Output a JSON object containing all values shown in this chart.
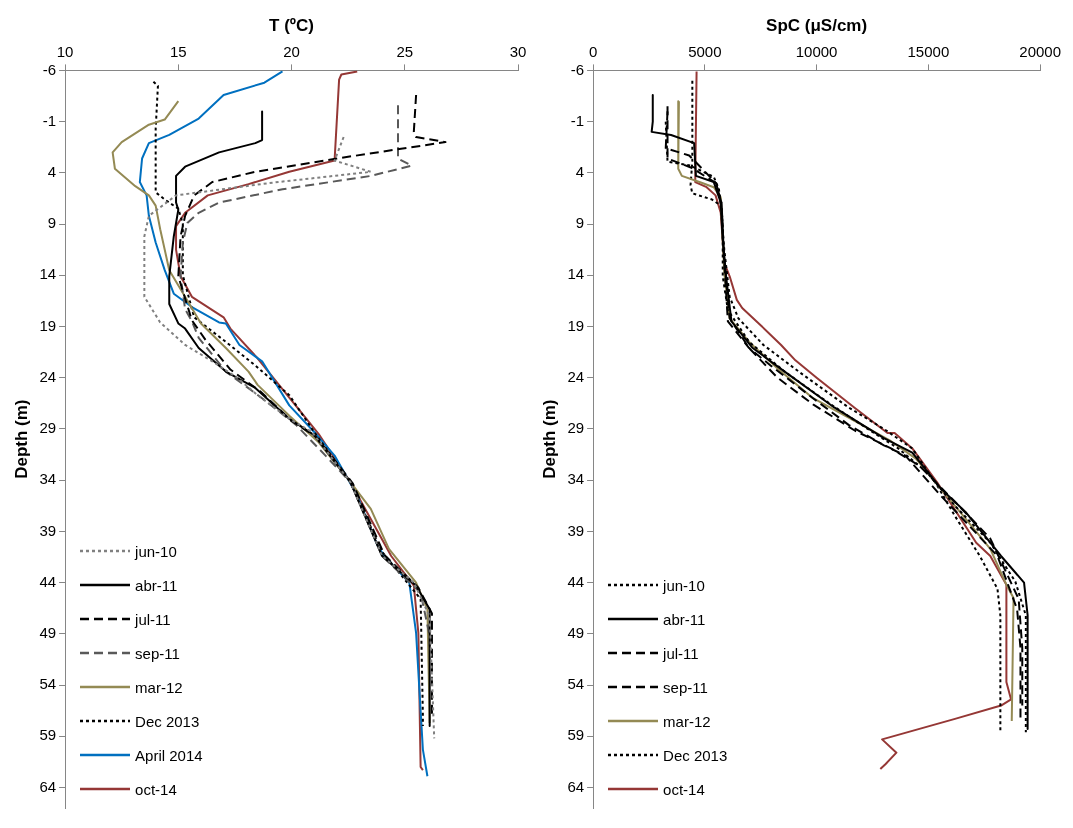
{
  "chart_data": [
    {
      "type": "line",
      "xlabel": "T (ºC)",
      "ylabel": "Depth (m)",
      "xlim": [
        10,
        30
      ],
      "xticks": [
        10,
        15,
        20,
        25,
        30
      ],
      "ylim": [
        66,
        -6
      ],
      "yticks": [
        -6,
        -1,
        4,
        9,
        14,
        19,
        24,
        29,
        34,
        39,
        44,
        49,
        54,
        59,
        64
      ],
      "grid": false,
      "legend": "bottom left",
      "series": [
        {
          "name": "jun-10",
          "color": "#808080",
          "line_style": "dotted",
          "x": [
            22.3,
            21.9,
            23.5,
            19.0,
            14.9,
            13.7,
            13.5,
            13.5,
            14.2,
            15.3,
            16.5,
            17.6,
            18.5,
            19.9,
            20.9,
            22.6,
            24.0,
            25.4,
            26.1,
            26.3
          ],
          "values": [
            0.5,
            2.8,
            3.9,
            5.0,
            6.2,
            8.2,
            10.2,
            16.1,
            18.6,
            20.8,
            22.4,
            24.0,
            25.7,
            28.0,
            29.3,
            34.2,
            41.4,
            44.0,
            47.3,
            59.2
          ]
        },
        {
          "name": "abr-11",
          "color": "#000000",
          "line_style": "solid",
          "x": [
            18.7,
            18.7,
            18.4,
            16.8,
            15.3,
            14.9,
            14.9,
            15.0,
            14.8,
            14.6,
            14.6,
            15.0,
            15.3,
            15.9,
            17.1,
            18.4,
            19.9,
            21.0,
            22.6,
            24.0,
            25.5,
            26.1,
            26.1
          ],
          "values": [
            -2,
            0.8,
            1.1,
            2.0,
            3.4,
            4.3,
            6.9,
            7.6,
            10.2,
            14.1,
            16.8,
            18.7,
            19.2,
            21.1,
            23.4,
            25.0,
            28.0,
            29.6,
            34.2,
            41.4,
            44.3,
            46.6,
            58.0
          ]
        },
        {
          "name": "jul-11",
          "color": "#000000",
          "line_style": "dashed",
          "x": [
            25.5,
            25.4,
            25.5,
            26.8,
            22.0,
            18.4,
            16.5,
            15.7,
            15.3,
            15.1,
            15.0,
            15.6,
            16.2,
            17.3,
            18.6,
            20.0,
            21.1,
            22.7,
            24.1,
            25.6,
            26.2,
            26.2
          ],
          "values": [
            -3.6,
            0,
            0.5,
            1.0,
            2.6,
            3.9,
            4.9,
            6.2,
            8.2,
            10.2,
            14.1,
            18.4,
            20.3,
            23.2,
            25.3,
            28.2,
            29.8,
            34.3,
            41.3,
            44.5,
            47,
            57
          ]
        },
        {
          "name": "sep-11",
          "color": "#595959",
          "line_style": "dashed",
          "x": [
            24.7,
            24.7,
            24.7,
            25.3,
            23.5,
            19.6,
            16.8,
            15.9,
            15.4,
            15.2,
            15.1,
            15.3,
            15.6,
            15.9,
            17.1,
            18.7,
            20.2,
            21.5,
            22.6,
            24.0,
            25.7,
            26.1,
            26.1
          ],
          "values": [
            -2.6,
            0,
            2.6,
            3.3,
            4.3,
            5.6,
            6.9,
            7.9,
            8.9,
            10.8,
            14.1,
            17.3,
            18.5,
            20.1,
            23.4,
            26.0,
            28.6,
            31.6,
            34.2,
            41.4,
            45.0,
            49.2,
            50.2
          ]
        },
        {
          "name": "mar-12",
          "color": "#948a54",
          "line_style": "solid",
          "x": [
            15.0,
            14.4,
            13.7,
            12.5,
            12.1,
            12.2,
            13.1,
            13.7,
            14.0,
            14.2,
            14.6,
            15.3,
            16.0,
            17.1,
            18.1,
            18.5,
            19.9,
            21.2,
            22.6,
            23.5,
            24.3,
            25.5,
            26.0,
            26.1
          ],
          "values": [
            -3.0,
            -1.2,
            -0.7,
            1.0,
            2.0,
            3.6,
            5.3,
            6.2,
            7.2,
            9.5,
            13.5,
            16.1,
            18.7,
            21.1,
            23.4,
            24.7,
            27.7,
            30.3,
            34.2,
            36.8,
            40.7,
            44.0,
            46.6,
            57.7
          ]
        },
        {
          "name": "Dec 2013",
          "color": "#000000",
          "line_style": "dotted",
          "x": [
            13.9,
            14.1,
            14.0,
            14.0,
            14.4,
            15.0,
            15.2,
            15.2,
            15.7,
            17.1,
            18.4,
            19.9,
            21.0,
            22.6,
            24.0,
            25.7,
            25.8,
            25.8
          ],
          "values": [
            -4.9,
            -4.5,
            -0.3,
            5.9,
            6.6,
            7.5,
            9.0,
            14.0,
            18.1,
            20.5,
            22.8,
            25.7,
            29.3,
            34.2,
            41.0,
            45.6,
            57.0,
            58.0
          ]
        },
        {
          "name": "April 2014",
          "color": "#0070c0",
          "line_style": "solid",
          "x": [
            19.6,
            18.8,
            17.0,
            15.9,
            14.6,
            13.7,
            13.4,
            13.3,
            13.6,
            13.7,
            14.0,
            14.4,
            14.8,
            15.6,
            16.8,
            17.1,
            17.7,
            18.7,
            19.9,
            21.0,
            21.9,
            22.9,
            23.8,
            24.1,
            25.2,
            25.5,
            25.8,
            26.0
          ],
          "values": [
            -5.9,
            -4.8,
            -3.6,
            -1.3,
            0.3,
            1.1,
            2.6,
            4.9,
            6.2,
            8.2,
            10.8,
            13.5,
            15.8,
            17.1,
            18.6,
            18.7,
            20.8,
            22.4,
            26.7,
            29.3,
            31.6,
            35.5,
            40.4,
            41.4,
            44.0,
            48.9,
            60.3,
            62.9
          ]
        },
        {
          "name": "oct-14",
          "color": "#953735",
          "line_style": "solid",
          "x": [
            22.9,
            22.2,
            22.1,
            21.9,
            19.9,
            18.1,
            16.3,
            15.3,
            14.9,
            14.9,
            15.1,
            15.6,
            17.0,
            17.3,
            18.5,
            20.4,
            21.2,
            22.6,
            24.0,
            24.4,
            25.4,
            25.6,
            25.7,
            25.8
          ],
          "values": [
            -5.9,
            -5.6,
            -5.1,
            2.8,
            3.9,
            5.1,
            6.2,
            7.9,
            9.2,
            11.5,
            14.1,
            16.1,
            18.1,
            19.2,
            22.1,
            27.3,
            29.5,
            34.2,
            39.8,
            41.4,
            44.3,
            48.9,
            62.0,
            62.3
          ]
        }
      ]
    },
    {
      "type": "line",
      "xlabel": "SpC (μS/cm)",
      "ylabel": "Depth (m)",
      "xlim": [
        0,
        20000
      ],
      "xticks": [
        0,
        5000,
        10000,
        15000,
        20000
      ],
      "ylim": [
        66,
        -6
      ],
      "yticks": [
        -6,
        -1,
        4,
        9,
        14,
        19,
        24,
        29,
        34,
        39,
        44,
        49,
        54,
        59,
        64
      ],
      "grid": false,
      "legend": "bottom left",
      "series": [
        {
          "name": "jun-10",
          "color": "#000000",
          "line_style": "dotted",
          "x": [
            3250,
            3330,
            4360,
            5400,
            5630,
            5800,
            5800,
            6030,
            6980,
            8570,
            10630,
            12220,
            13650,
            14920,
            16190,
            17770,
            18890,
            19360,
            19360
          ],
          "values": [
            -1,
            2.9,
            3.3,
            4.4,
            5.6,
            8.9,
            14.1,
            17.4,
            20.5,
            23.4,
            26.6,
            28.9,
            30.9,
            33.2,
            36.5,
            40.1,
            43.9,
            47.2,
            58.6
          ]
        },
        {
          "name": "abr-11",
          "color": "#000000",
          "line_style": "solid",
          "x": [
            2670,
            2670,
            2620,
            3490,
            4520,
            4600,
            5400,
            5710,
            5790,
            5950,
            6190,
            7140,
            8570,
            10790,
            13010,
            14280,
            15550,
            16660,
            18250,
            19280,
            19440,
            19440
          ],
          "values": [
            -3.6,
            -1,
            0,
            0.3,
            1.1,
            4.3,
            4.9,
            6.9,
            10.2,
            14.1,
            18.5,
            21.1,
            23.4,
            26.9,
            29.9,
            31.3,
            34.8,
            37.1,
            41.4,
            44,
            47.2,
            58.3
          ]
        },
        {
          "name": "jul-11",
          "color": "#000000",
          "line_style": "dashed",
          "x": [
            3330,
            3330,
            4400,
            5500,
            5750,
            5850,
            6110,
            6980,
            8250,
            9840,
            11740,
            13330,
            14600,
            16190,
            17770,
            19040,
            19200,
            19200
          ],
          "values": [
            -2.5,
            2.6,
            3.5,
            5.0,
            7.0,
            12.0,
            18.2,
            21.1,
            24,
            26.6,
            29.2,
            30.9,
            32.6,
            36.1,
            39.7,
            45.6,
            50.4,
            56
          ]
        },
        {
          "name": "sep-11",
          "color": "#000000",
          "line_style": "dashed",
          "x": [
            3330,
            3250,
            4300,
            5500,
            5750,
            5850,
            6030,
            6980,
            7940,
            9840,
            11430,
            13010,
            13970,
            15550,
            16980,
            18090,
            18970,
            19120,
            19120
          ],
          "values": [
            -2,
            1.6,
            2.3,
            5.0,
            7.0,
            12.0,
            18.5,
            21.1,
            22.8,
            26,
            28.6,
            30.6,
            31.6,
            35.5,
            38.8,
            41.4,
            46.6,
            50.4,
            57.3
          ]
        },
        {
          "name": "mar-12",
          "color": "#948a54",
          "line_style": "solid",
          "x": [
            3840,
            3810,
            3970,
            4760,
            5400,
            5710,
            5870,
            6110,
            6980,
            8250,
            9840,
            11430,
            13330,
            14440,
            16190,
            17770,
            18490,
            18810,
            18730
          ],
          "values": [
            -3,
            3.6,
            4.3,
            4.9,
            5.4,
            6.4,
            13.8,
            18.2,
            20.5,
            23.1,
            26,
            27.9,
            30.2,
            31.9,
            36.5,
            40.7,
            44.2,
            45.5,
            57.5
          ]
        },
        {
          "name": "Dec 2013",
          "color": "#000000",
          "line_style": "dotted",
          "x": [
            4440,
            4440,
            4360,
            4440,
            5320,
            5710,
            5870,
            6110,
            6500,
            7620,
            9200,
            11430,
            13010,
            14280,
            15390,
            16190,
            17300,
            18090,
            18220,
            18220
          ],
          "values": [
            -5,
            2.9,
            5.2,
            6.0,
            6.6,
            7.2,
            11.5,
            16.1,
            18.2,
            20.8,
            23.4,
            26.9,
            29,
            30.9,
            34.5,
            37.5,
            41.4,
            44.6,
            47.2,
            58.5
          ]
        },
        {
          "name": "oct-14",
          "color": "#953735",
          "line_style": "solid",
          "x": [
            4630,
            4570,
            5080,
            5480,
            5710,
            5870,
            6110,
            6430,
            6670,
            7460,
            8410,
            9050,
            10000,
            11740,
            13170,
            13490,
            14280,
            15390,
            17140,
            17770,
            18490,
            18490,
            18700,
            18250,
            16190,
            12930,
            13570,
            13090,
            12850
          ],
          "values": [
            -5.9,
            4.9,
            5.4,
            6.2,
            7.9,
            12.8,
            14.1,
            16.4,
            17.2,
            18.8,
            20.8,
            22.3,
            24,
            27,
            29.4,
            29.4,
            30.9,
            34.2,
            40.1,
            41.4,
            44.2,
            53.7,
            55.4,
            56,
            57.3,
            59.3,
            60.6,
            61.7,
            62.2
          ]
        }
      ]
    }
  ]
}
